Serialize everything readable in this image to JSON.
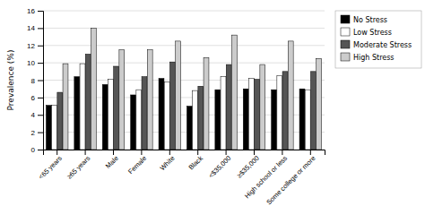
{
  "chart_data": {
    "type": "bar",
    "categories": [
      "<65 years",
      "≥65 years",
      "Male",
      "Female",
      "White",
      "Black",
      "<$35,000",
      "≥$35,000",
      "High school or less",
      "Some college or more"
    ],
    "series": [
      {
        "name": "No Stress",
        "color": "#000000",
        "values": [
          5.1,
          8.4,
          7.5,
          6.3,
          8.2,
          5.0,
          6.9,
          7.0,
          6.9,
          7.0
        ]
      },
      {
        "name": "Low Stress",
        "color": "#ffffff",
        "values": [
          5.1,
          9.9,
          8.1,
          6.9,
          7.8,
          6.8,
          8.4,
          8.2,
          8.5,
          6.9
        ]
      },
      {
        "name": "Moderate Stress",
        "color": "#555555",
        "values": [
          6.6,
          11.0,
          9.6,
          8.4,
          10.1,
          7.3,
          9.8,
          8.1,
          9.0,
          9.0
        ]
      },
      {
        "name": "High Stress",
        "color": "#cccccc",
        "values": [
          9.9,
          14.0,
          11.5,
          11.5,
          12.5,
          10.6,
          13.2,
          9.8,
          12.5,
          10.5
        ]
      }
    ],
    "ylabel": "Prevalence (%)",
    "ylim": [
      0,
      16.0
    ],
    "yticks": [
      0.0,
      2.0,
      4.0,
      6.0,
      8.0,
      10.0,
      12.0,
      14.0,
      16.0
    ],
    "grid": true,
    "legend": "right"
  }
}
